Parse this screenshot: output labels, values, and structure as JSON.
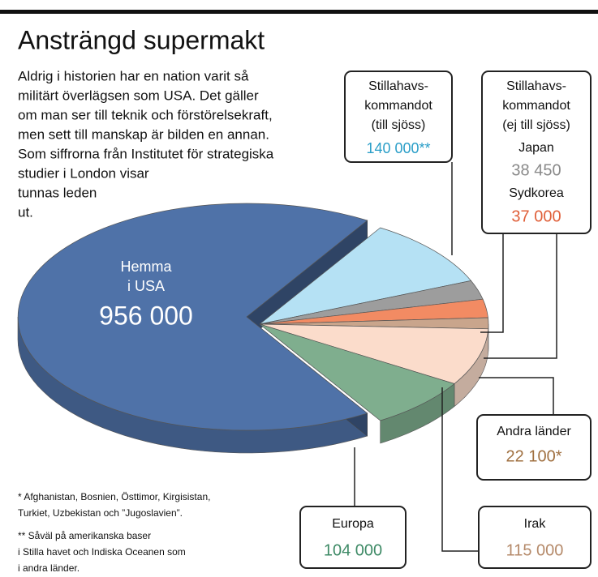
{
  "chart_data": {
    "type": "pie",
    "title": "Ansträngd supermakt",
    "intro": [
      "Aldrig i historien har en nation varit så",
      "militärt överlägsen som USA. Det gäller",
      "om man ser till teknik och förstörelsekraft,",
      "men sett till manskap är bilden en annan.",
      "Som siffrorna från Institutet för strategiska",
      "studier i London visar",
      "tunnas leden",
      "ut."
    ],
    "group_label": [
      "Stillahavs-",
      "kommandot",
      "(ej till sjöss)"
    ],
    "categories": [
      [
        "Hemma",
        "i USA"
      ],
      [
        "Stillahavs-",
        "kommandot",
        "(till sjöss)"
      ],
      [
        "Japan"
      ],
      [
        "Sydkorea"
      ],
      [
        "Andra länder"
      ],
      [
        "Irak"
      ],
      [
        "Europa"
      ]
    ],
    "values": [
      956000,
      140000,
      38450,
      37000,
      22100,
      115000,
      104000
    ],
    "value_labels": [
      "956 000",
      "140 000**",
      "38 450",
      "37 000",
      "22 100*",
      "115 000",
      "104 000"
    ],
    "colors": [
      "#4f72a8",
      "#b5e1f4",
      "#9d9d9d",
      "#f28b63",
      "#c9a58c",
      "#fbdccb",
      "#7fae8e"
    ],
    "label_colors": [
      "#ffffff",
      "#2a9ec8",
      "#8a8a8a",
      "#e0603a",
      "#a07040",
      "#b58a6a",
      "#3e8a66"
    ],
    "footnotes": [
      "* Afghanistan, Bosnien, Östtimor, Kirgisistan,",
      "Turkiet, Uzbekistan och ”Jugoslavien”.",
      "** Såväl på amerikanska baser",
      "i Stilla havet och Indiska Oceanen som",
      "i andra länder."
    ]
  }
}
